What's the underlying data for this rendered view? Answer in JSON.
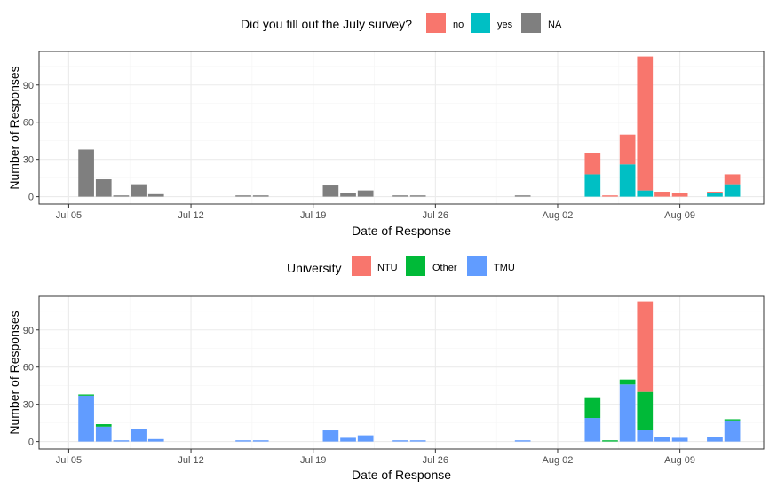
{
  "colors": {
    "no": "#F8766D",
    "yes": "#00BFC4",
    "na": "#7F7F7F",
    "ntu": "#F8766D",
    "other": "#00BA38",
    "tmu": "#619CFF",
    "grid_major": "#EBEBEB",
    "grid_minor": "#F5F5F5",
    "panel_border": "#333333"
  },
  "chart_data": [
    {
      "type": "bar",
      "stacked": true,
      "xlabel": "Date of Response",
      "ylabel": "Number of Responses",
      "legend": {
        "title": "Did you fill out the July survey?",
        "position": "top"
      },
      "x_ticks": [
        {
          "label": "Jul 05",
          "day": 5
        },
        {
          "label": "Jul 12",
          "day": 12
        },
        {
          "label": "Jul 19",
          "day": 19
        },
        {
          "label": "Jul 26",
          "day": 26
        },
        {
          "label": "Aug 02",
          "day": 33
        },
        {
          "label": "Aug 09",
          "day": 40
        }
      ],
      "xlim": [
        3.3,
        44.8
      ],
      "y_ticks": [
        0,
        30,
        60,
        90
      ],
      "ylim": [
        -6,
        117
      ],
      "series": [
        {
          "name": "no",
          "color_key": "no"
        },
        {
          "name": "yes",
          "color_key": "yes"
        },
        {
          "name": "NA",
          "color_key": "na"
        }
      ],
      "bars": [
        {
          "day": 6,
          "values": [
            0,
            0,
            38
          ]
        },
        {
          "day": 7,
          "values": [
            0,
            0,
            14
          ]
        },
        {
          "day": 8,
          "values": [
            0,
            0,
            1
          ]
        },
        {
          "day": 9,
          "values": [
            0,
            0,
            10
          ]
        },
        {
          "day": 10,
          "values": [
            0,
            0,
            2
          ]
        },
        {
          "day": 15,
          "values": [
            0,
            0,
            1
          ]
        },
        {
          "day": 16,
          "values": [
            0,
            0,
            1
          ]
        },
        {
          "day": 20,
          "values": [
            0,
            0,
            9
          ]
        },
        {
          "day": 21,
          "values": [
            0,
            0,
            3
          ]
        },
        {
          "day": 22,
          "values": [
            0,
            0,
            5
          ]
        },
        {
          "day": 24,
          "values": [
            0,
            0,
            1
          ]
        },
        {
          "day": 25,
          "values": [
            0,
            0,
            1
          ]
        },
        {
          "day": 31,
          "values": [
            0,
            0,
            1
          ]
        },
        {
          "day": 35,
          "values": [
            17,
            18,
            0
          ]
        },
        {
          "day": 36,
          "values": [
            1,
            0,
            0
          ]
        },
        {
          "day": 37,
          "values": [
            24,
            26,
            0
          ]
        },
        {
          "day": 38,
          "values": [
            108,
            5,
            0
          ]
        },
        {
          "day": 39,
          "values": [
            4,
            0,
            0
          ]
        },
        {
          "day": 40,
          "values": [
            3,
            0,
            0
          ]
        },
        {
          "day": 42,
          "values": [
            1,
            3,
            0
          ]
        },
        {
          "day": 43,
          "values": [
            8,
            10,
            0
          ]
        }
      ]
    },
    {
      "type": "bar",
      "stacked": true,
      "xlabel": "Date of Response",
      "ylabel": "Number of Responses",
      "legend": {
        "title": "University",
        "position": "top"
      },
      "x_ticks": [
        {
          "label": "Jul 05",
          "day": 5
        },
        {
          "label": "Jul 12",
          "day": 12
        },
        {
          "label": "Jul 19",
          "day": 19
        },
        {
          "label": "Jul 26",
          "day": 26
        },
        {
          "label": "Aug 02",
          "day": 33
        },
        {
          "label": "Aug 09",
          "day": 40
        }
      ],
      "xlim": [
        3.3,
        44.8
      ],
      "y_ticks": [
        0,
        30,
        60,
        90
      ],
      "ylim": [
        -6,
        117
      ],
      "series": [
        {
          "name": "NTU",
          "color_key": "ntu"
        },
        {
          "name": "Other",
          "color_key": "other"
        },
        {
          "name": "TMU",
          "color_key": "tmu"
        }
      ],
      "bars": [
        {
          "day": 6,
          "values": [
            0,
            1,
            37
          ]
        },
        {
          "day": 7,
          "values": [
            0,
            2,
            12
          ]
        },
        {
          "day": 8,
          "values": [
            0,
            0,
            1
          ]
        },
        {
          "day": 9,
          "values": [
            0,
            0,
            10
          ]
        },
        {
          "day": 10,
          "values": [
            0,
            0,
            2
          ]
        },
        {
          "day": 15,
          "values": [
            0,
            0,
            1
          ]
        },
        {
          "day": 16,
          "values": [
            0,
            0,
            1
          ]
        },
        {
          "day": 20,
          "values": [
            0,
            0,
            9
          ]
        },
        {
          "day": 21,
          "values": [
            0,
            0,
            3
          ]
        },
        {
          "day": 22,
          "values": [
            0,
            0,
            5
          ]
        },
        {
          "day": 24,
          "values": [
            0,
            0,
            1
          ]
        },
        {
          "day": 25,
          "values": [
            0,
            0,
            1
          ]
        },
        {
          "day": 31,
          "values": [
            0,
            0,
            1
          ]
        },
        {
          "day": 35,
          "values": [
            0,
            16,
            19
          ]
        },
        {
          "day": 36,
          "values": [
            0,
            1,
            0
          ]
        },
        {
          "day": 37,
          "values": [
            0,
            4,
            46
          ]
        },
        {
          "day": 38,
          "values": [
            73,
            31,
            9
          ]
        },
        {
          "day": 39,
          "values": [
            0,
            0,
            4
          ]
        },
        {
          "day": 40,
          "values": [
            0,
            0,
            3
          ]
        },
        {
          "day": 42,
          "values": [
            0,
            0,
            4
          ]
        },
        {
          "day": 43,
          "values": [
            0,
            1,
            17
          ]
        }
      ]
    }
  ]
}
